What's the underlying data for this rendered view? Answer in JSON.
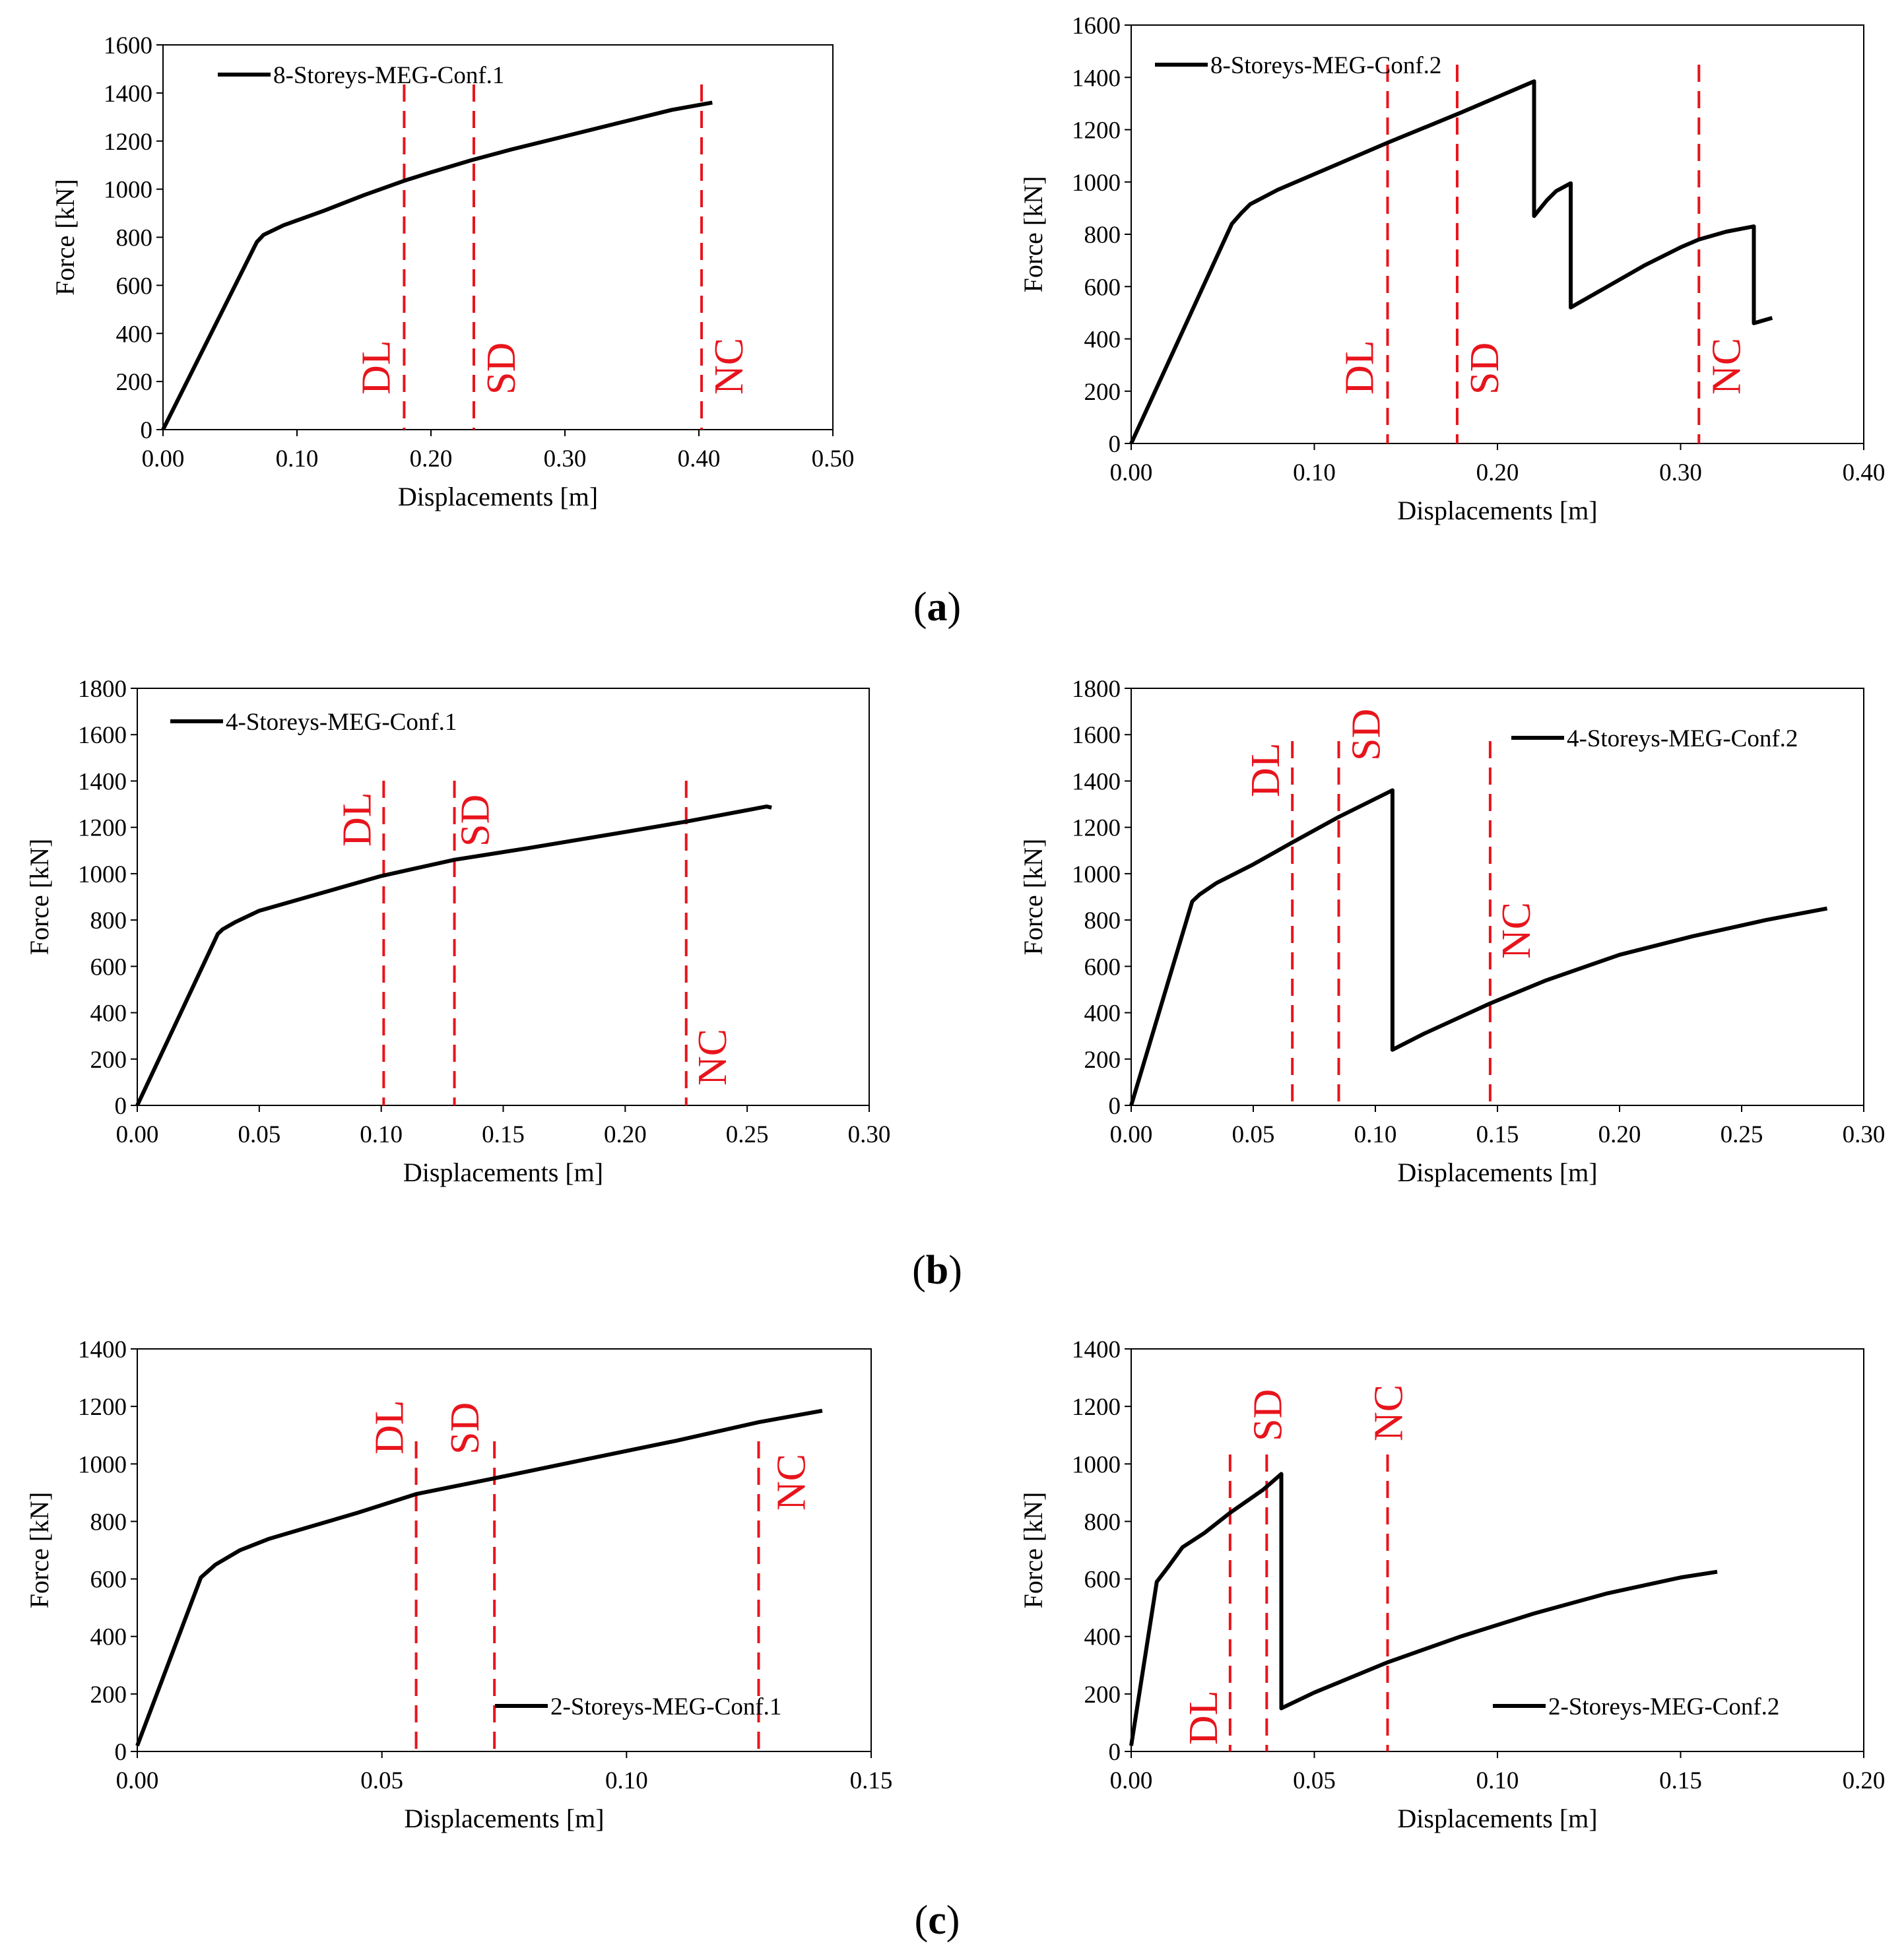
{
  "captions": [
    {
      "open": "(",
      "letter": "a",
      "close": ")"
    },
    {
      "open": "(",
      "letter": "b",
      "close": ")"
    },
    {
      "open": "(",
      "letter": "c",
      "close": ")"
    }
  ],
  "colors": {
    "series": "#000000",
    "limit_lines": "#e8141c"
  },
  "chart_data": [
    {
      "type": "line",
      "panel": "a-left",
      "title": "",
      "xlabel": "Displacements [m]",
      "ylabel": "Force [kN]",
      "xlim": [
        0,
        0.5
      ],
      "ylim": [
        0,
        1600
      ],
      "xticks": [
        "0.00",
        "0.10",
        "0.20",
        "0.30",
        "0.40",
        "0.50"
      ],
      "yticks": [
        "0",
        "200",
        "400",
        "600",
        "800",
        "1000",
        "1200",
        "1400",
        "1600"
      ],
      "legend_position": "top-left",
      "series": [
        {
          "name": "8-Storeys-MEG-Conf.1",
          "x": [
            0,
            0.07,
            0.075,
            0.09,
            0.12,
            0.15,
            0.18,
            0.2,
            0.23,
            0.26,
            0.3,
            0.34,
            0.38,
            0.41
          ],
          "y": [
            0,
            780,
            810,
            850,
            910,
            975,
            1035,
            1070,
            1120,
            1165,
            1220,
            1275,
            1330,
            1360
          ]
        }
      ],
      "limits": [
        {
          "label": "DL",
          "x": 0.18
        },
        {
          "label": "SD",
          "x": 0.232
        },
        {
          "label": "NC",
          "x": 0.402
        }
      ]
    },
    {
      "type": "line",
      "panel": "a-right",
      "title": "",
      "xlabel": "Displacements [m]",
      "ylabel": "Force [kN]",
      "xlim": [
        0,
        0.4
      ],
      "ylim": [
        0,
        1600
      ],
      "xticks": [
        "0.00",
        "0.10",
        "0.20",
        "0.30",
        "0.40"
      ],
      "yticks": [
        "0",
        "200",
        "400",
        "600",
        "800",
        "1000",
        "1200",
        "1400",
        "1600"
      ],
      "legend_position": "top-left",
      "series": [
        {
          "name": "8-Storeys-MEG-Conf.2",
          "x": [
            0,
            0.055,
            0.06,
            0.065,
            0.08,
            0.1,
            0.14,
            0.18,
            0.22,
            0.22,
            0.227,
            0.232,
            0.24,
            0.24,
            0.26,
            0.28,
            0.3,
            0.31,
            0.325,
            0.34,
            0.34,
            0.35
          ],
          "y": [
            0,
            840,
            880,
            915,
            970,
            1030,
            1150,
            1265,
            1385,
            870,
            930,
            965,
            995,
            520,
            600,
            680,
            750,
            780,
            810,
            830,
            460,
            480
          ]
        }
      ],
      "limits": [
        {
          "label": "DL",
          "x": 0.14
        },
        {
          "label": "SD",
          "x": 0.178
        },
        {
          "label": "NC",
          "x": 0.31
        }
      ]
    },
    {
      "type": "line",
      "panel": "b-left",
      "title": "",
      "xlabel": "Displacements [m]",
      "ylabel": "Force [kN]",
      "xlim": [
        0,
        0.3
      ],
      "ylim": [
        0,
        1800
      ],
      "xticks": [
        "0.00",
        "0.05",
        "0.10",
        "0.15",
        "0.20",
        "0.25",
        "0.30"
      ],
      "yticks": [
        "0",
        "200",
        "400",
        "600",
        "800",
        "1000",
        "1200",
        "1400",
        "1600",
        "1800"
      ],
      "legend_position": "top-left",
      "series": [
        {
          "name": "4-Storeys-MEG-Conf.1",
          "x": [
            0,
            0.033,
            0.035,
            0.04,
            0.05,
            0.07,
            0.1,
            0.13,
            0.16,
            0.2,
            0.225,
            0.258,
            0.26
          ],
          "y": [
            0,
            740,
            760,
            790,
            840,
            900,
            990,
            1060,
            1110,
            1180,
            1225,
            1290,
            1285
          ]
        }
      ],
      "limits": [
        {
          "label": "DL",
          "x": 0.101
        },
        {
          "label": "SD",
          "x": 0.13
        },
        {
          "label": "NC",
          "x": 0.225
        }
      ]
    },
    {
      "type": "line",
      "panel": "b-right",
      "title": "",
      "xlabel": "Displacements [m]",
      "ylabel": "Force [kN]",
      "xlim": [
        0,
        0.3
      ],
      "ylim": [
        0,
        1800
      ],
      "xticks": [
        "0.00",
        "0.05",
        "0.10",
        "0.15",
        "0.20",
        "0.25",
        "0.30"
      ],
      "yticks": [
        "0",
        "200",
        "400",
        "600",
        "800",
        "1000",
        "1200",
        "1400",
        "1600",
        "1800"
      ],
      "legend_position": "top-right",
      "series": [
        {
          "name": "4-Storeys-MEG-Conf.2",
          "x": [
            0,
            0.025,
            0.028,
            0.035,
            0.05,
            0.066,
            0.085,
            0.107,
            0.107,
            0.12,
            0.147,
            0.17,
            0.2,
            0.23,
            0.26,
            0.285
          ],
          "y": [
            0,
            880,
            910,
            960,
            1040,
            1135,
            1245,
            1360,
            240,
            310,
            440,
            540,
            650,
            730,
            800,
            850
          ]
        }
      ],
      "limits": [
        {
          "label": "DL",
          "x": 0.066
        },
        {
          "label": "SD",
          "x": 0.085
        },
        {
          "label": "NC",
          "x": 0.147
        }
      ]
    },
    {
      "type": "line",
      "panel": "c-left",
      "title": "",
      "xlabel": "Displacements [m]",
      "ylabel": "Force [kN]",
      "xlim": [
        0,
        0.15
      ],
      "ylim": [
        0,
        1400
      ],
      "xticks": [
        "0.00",
        "0.05",
        "0.10",
        "0.15"
      ],
      "yticks": [
        "0",
        "200",
        "400",
        "600",
        "800",
        "1000",
        "1200",
        "1400"
      ],
      "legend_position": "bottom-right",
      "series": [
        {
          "name": "2-Storeys-MEG-Conf.1",
          "x": [
            0,
            0.013,
            0.016,
            0.021,
            0.027,
            0.035,
            0.045,
            0.057,
            0.073,
            0.09,
            0.11,
            0.127,
            0.14
          ],
          "y": [
            20,
            605,
            650,
            700,
            740,
            780,
            830,
            895,
            950,
            1010,
            1080,
            1145,
            1185
          ]
        }
      ],
      "limits": [
        {
          "label": "DL",
          "x": 0.057
        },
        {
          "label": "SD",
          "x": 0.073
        },
        {
          "label": "NC",
          "x": 0.127
        }
      ]
    },
    {
      "type": "line",
      "panel": "c-right",
      "title": "",
      "xlabel": "Displacements [m]",
      "ylabel": "Force [kN]",
      "xlim": [
        0,
        0.2
      ],
      "ylim": [
        0,
        1400
      ],
      "xticks": [
        "0.00",
        "0.05",
        "0.10",
        "0.15",
        "0.20"
      ],
      "yticks": [
        "0",
        "200",
        "400",
        "600",
        "800",
        "1000",
        "1200",
        "1400"
      ],
      "legend_position": "bottom-right",
      "series": [
        {
          "name": "2-Storeys-MEG-Conf.2",
          "x": [
            0,
            0.007,
            0.01,
            0.014,
            0.02,
            0.027,
            0.036,
            0.041,
            0.041,
            0.05,
            0.07,
            0.09,
            0.11,
            0.13,
            0.15,
            0.16
          ],
          "y": [
            20,
            590,
            640,
            710,
            760,
            830,
            910,
            965,
            150,
            205,
            310,
            400,
            480,
            550,
            605,
            625
          ]
        }
      ],
      "limits": [
        {
          "label": "DL",
          "x": 0.027
        },
        {
          "label": "SD",
          "x": 0.037
        },
        {
          "label": "NC",
          "x": 0.07
        }
      ]
    }
  ]
}
